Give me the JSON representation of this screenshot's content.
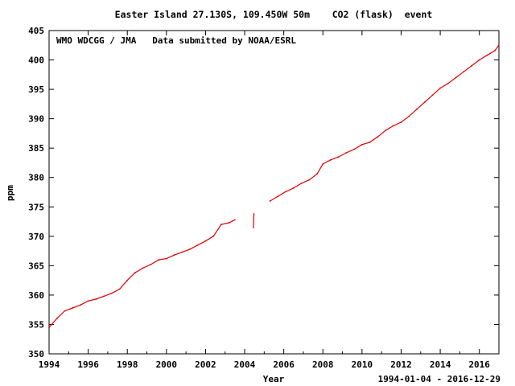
{
  "chart_data": {
    "type": "line",
    "title": "Easter Island 27.130S, 109.450W 50m    CO2 (flask)  event",
    "annotation": "WMO WDCGG / JMA   Data submitted by NOAA/ESRL",
    "xlabel": "Year",
    "ylabel": "ppm",
    "date_range": "1994-01-04 - 2016-12-29",
    "xlim": [
      1994,
      2017
    ],
    "ylim": [
      350,
      405
    ],
    "x_ticks": [
      1994,
      1996,
      1998,
      2000,
      2002,
      2004,
      2006,
      2008,
      2010,
      2012,
      2014,
      2016
    ],
    "y_ticks": [
      350,
      355,
      360,
      365,
      370,
      375,
      380,
      385,
      390,
      395,
      400,
      405
    ],
    "grid": false,
    "series_color": "#e00000",
    "series": [
      {
        "x": [
          1994.0,
          1994.4,
          1994.8,
          1995.2,
          1995.6,
          1996.0,
          1996.4,
          1996.8,
          1997.2,
          1997.6,
          1998.0,
          1998.4,
          1998.8,
          1999.2,
          1999.6,
          2000.0,
          2000.4,
          2000.8,
          2001.2,
          2001.6,
          2002.0,
          2002.4,
          2002.8,
          2003.2,
          2003.5
        ],
        "y": [
          354.5,
          356.0,
          357.3,
          357.8,
          358.3,
          359.0,
          359.3,
          359.8,
          360.3,
          361.0,
          362.5,
          363.8,
          364.6,
          365.2,
          366.0,
          366.2,
          366.8,
          367.3,
          367.8,
          368.5,
          369.2,
          370.0,
          372.0,
          372.3,
          372.8
        ]
      },
      {
        "x": [
          2004.45,
          2004.47
        ],
        "y": [
          371.5,
          373.8
        ]
      },
      {
        "x": [
          2005.3,
          2005.7,
          2006.1,
          2006.5,
          2006.9,
          2007.3,
          2007.7,
          2008.0,
          2008.4,
          2008.8,
          2009.2,
          2009.6,
          2010.0,
          2010.4,
          2010.8,
          2011.2,
          2011.6,
          2012.0,
          2012.4,
          2012.8,
          2013.2,
          2013.6,
          2014.0,
          2014.4,
          2014.8,
          2015.2,
          2015.6,
          2016.0,
          2016.4,
          2016.8,
          2016.99
        ],
        "y": [
          376.0,
          376.8,
          377.6,
          378.2,
          379.0,
          379.6,
          380.6,
          382.3,
          383.0,
          383.5,
          384.2,
          384.8,
          385.6,
          386.0,
          386.9,
          388.0,
          388.8,
          389.4,
          390.4,
          391.6,
          392.8,
          394.0,
          395.2,
          396.0,
          397.0,
          398.0,
          399.0,
          400.0,
          400.8,
          401.6,
          402.5
        ]
      }
    ]
  }
}
